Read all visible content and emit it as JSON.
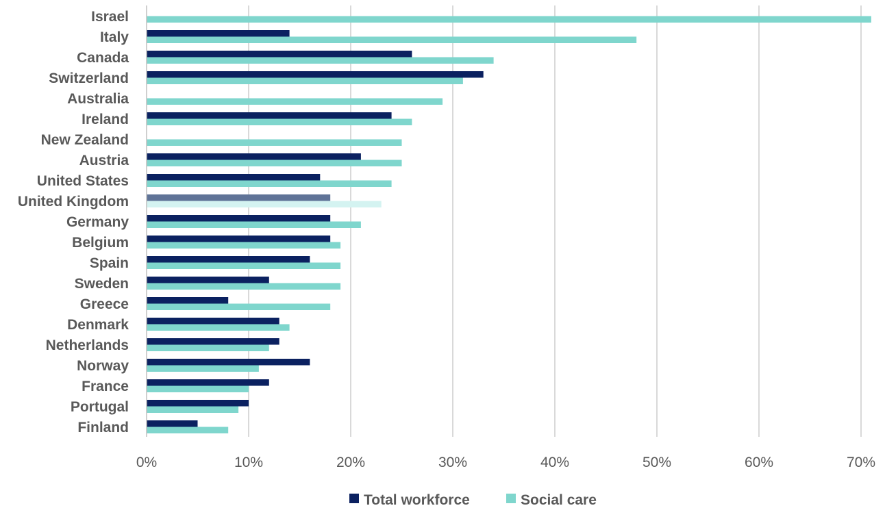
{
  "chart_data": {
    "type": "bar",
    "orientation": "horizontal",
    "title": "",
    "xlabel": "",
    "ylabel": "",
    "xlim": [
      0,
      0.7
    ],
    "x_ticks": [
      0,
      0.1,
      0.2,
      0.3,
      0.4,
      0.5,
      0.6,
      0.7
    ],
    "x_tick_labels": [
      "0%",
      "10%",
      "20%",
      "30%",
      "40%",
      "50%",
      "60%",
      "70%"
    ],
    "grid": "vertical",
    "legend_position": "bottom",
    "highlight_category": "United Kingdom",
    "categories": [
      "Israel",
      "Italy",
      "Canada",
      "Switzerland",
      "Australia",
      "Ireland",
      "New Zealand",
      "Austria",
      "United States",
      "United Kingdom",
      "Germany",
      "Belgium",
      "Spain",
      "Sweden",
      "Greece",
      "Denmark",
      "Netherlands",
      "Norway",
      "France",
      "Portugal",
      "Finland"
    ],
    "series": [
      {
        "name": "Total workforce",
        "color": "#0b2160",
        "highlight_color": "#5f7397",
        "values": [
          null,
          0.14,
          0.26,
          0.33,
          null,
          0.24,
          null,
          0.21,
          0.17,
          0.18,
          0.18,
          0.18,
          0.16,
          0.12,
          0.08,
          0.13,
          0.13,
          0.16,
          0.12,
          0.1,
          0.05
        ]
      },
      {
        "name": "Social care",
        "color": "#7fd6cd",
        "highlight_color": "#d4f3f1",
        "values": [
          0.71,
          0.48,
          0.34,
          0.31,
          0.29,
          0.26,
          0.25,
          0.25,
          0.24,
          0.23,
          0.21,
          0.19,
          0.19,
          0.19,
          0.18,
          0.14,
          0.12,
          0.11,
          0.1,
          0.09,
          0.08
        ]
      }
    ]
  },
  "colors": {
    "gridline": "#d9d9d9",
    "axis": "#bfbfbf",
    "text": "#595959"
  }
}
